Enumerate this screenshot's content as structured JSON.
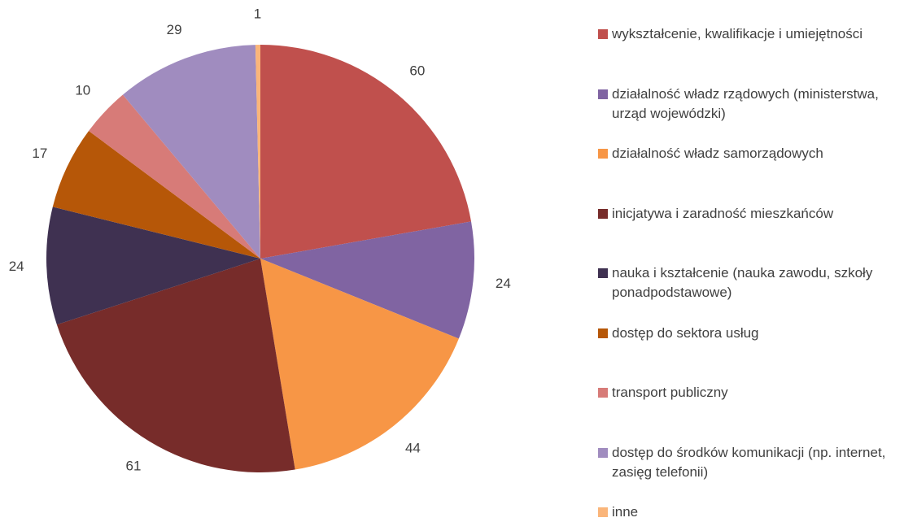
{
  "chart_data": {
    "type": "pie",
    "categories": [
      "wykształcenie, kwalifikacje i umiejętności",
      "działalność władz rządowych (ministerstwa, urząd wojewódzki)",
      "działalność władz samorządowych",
      "inicjatywa i zaradność mieszkańców",
      "nauka i kształcenie (nauka zawodu, szkoły ponadpodstawowe)",
      "dostęp do sektora usług",
      "transport publiczny",
      "dostęp do środków komunikacji (np. internet, zasięg telefonii)",
      "inne"
    ],
    "values": [
      60,
      24,
      44,
      61,
      24,
      17,
      10,
      29,
      1
    ],
    "colors": [
      "#c0504d",
      "#8064a2",
      "#f79646",
      "#772c2a",
      "#3f3151",
      "#b65708",
      "#d77b78",
      "#a08cbf",
      "#fab57a"
    ],
    "legend": "right"
  }
}
